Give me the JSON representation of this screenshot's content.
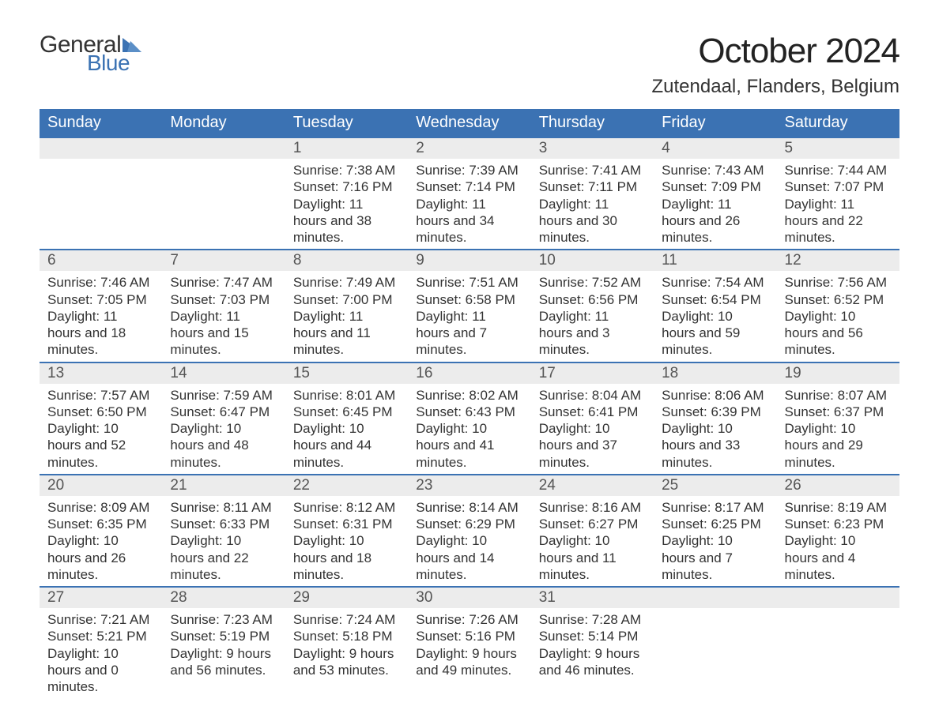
{
  "logo": {
    "text1": "General",
    "text2": "Blue"
  },
  "title": "October 2024",
  "location": "Zutendaal, Flanders, Belgium",
  "colors": {
    "header_bg": "#3b72b3",
    "header_text": "#ffffff",
    "daynum_bg": "#ececec",
    "daynum_border": "#3b72b3",
    "body_text": "#333333",
    "page_bg": "#ffffff",
    "logo_blue": "#3b72b3"
  },
  "weekdays": [
    "Sunday",
    "Monday",
    "Tuesday",
    "Wednesday",
    "Thursday",
    "Friday",
    "Saturday"
  ],
  "weeks": [
    [
      null,
      null,
      {
        "n": "1",
        "sr": "7:38 AM",
        "ss": "7:16 PM",
        "dl": "11 hours and 38 minutes."
      },
      {
        "n": "2",
        "sr": "7:39 AM",
        "ss": "7:14 PM",
        "dl": "11 hours and 34 minutes."
      },
      {
        "n": "3",
        "sr": "7:41 AM",
        "ss": "7:11 PM",
        "dl": "11 hours and 30 minutes."
      },
      {
        "n": "4",
        "sr": "7:43 AM",
        "ss": "7:09 PM",
        "dl": "11 hours and 26 minutes."
      },
      {
        "n": "5",
        "sr": "7:44 AM",
        "ss": "7:07 PM",
        "dl": "11 hours and 22 minutes."
      }
    ],
    [
      {
        "n": "6",
        "sr": "7:46 AM",
        "ss": "7:05 PM",
        "dl": "11 hours and 18 minutes."
      },
      {
        "n": "7",
        "sr": "7:47 AM",
        "ss": "7:03 PM",
        "dl": "11 hours and 15 minutes."
      },
      {
        "n": "8",
        "sr": "7:49 AM",
        "ss": "7:00 PM",
        "dl": "11 hours and 11 minutes."
      },
      {
        "n": "9",
        "sr": "7:51 AM",
        "ss": "6:58 PM",
        "dl": "11 hours and 7 minutes."
      },
      {
        "n": "10",
        "sr": "7:52 AM",
        "ss": "6:56 PM",
        "dl": "11 hours and 3 minutes."
      },
      {
        "n": "11",
        "sr": "7:54 AM",
        "ss": "6:54 PM",
        "dl": "10 hours and 59 minutes."
      },
      {
        "n": "12",
        "sr": "7:56 AM",
        "ss": "6:52 PM",
        "dl": "10 hours and 56 minutes."
      }
    ],
    [
      {
        "n": "13",
        "sr": "7:57 AM",
        "ss": "6:50 PM",
        "dl": "10 hours and 52 minutes."
      },
      {
        "n": "14",
        "sr": "7:59 AM",
        "ss": "6:47 PM",
        "dl": "10 hours and 48 minutes."
      },
      {
        "n": "15",
        "sr": "8:01 AM",
        "ss": "6:45 PM",
        "dl": "10 hours and 44 minutes."
      },
      {
        "n": "16",
        "sr": "8:02 AM",
        "ss": "6:43 PM",
        "dl": "10 hours and 41 minutes."
      },
      {
        "n": "17",
        "sr": "8:04 AM",
        "ss": "6:41 PM",
        "dl": "10 hours and 37 minutes."
      },
      {
        "n": "18",
        "sr": "8:06 AM",
        "ss": "6:39 PM",
        "dl": "10 hours and 33 minutes."
      },
      {
        "n": "19",
        "sr": "8:07 AM",
        "ss": "6:37 PM",
        "dl": "10 hours and 29 minutes."
      }
    ],
    [
      {
        "n": "20",
        "sr": "8:09 AM",
        "ss": "6:35 PM",
        "dl": "10 hours and 26 minutes."
      },
      {
        "n": "21",
        "sr": "8:11 AM",
        "ss": "6:33 PM",
        "dl": "10 hours and 22 minutes."
      },
      {
        "n": "22",
        "sr": "8:12 AM",
        "ss": "6:31 PM",
        "dl": "10 hours and 18 minutes."
      },
      {
        "n": "23",
        "sr": "8:14 AM",
        "ss": "6:29 PM",
        "dl": "10 hours and 14 minutes."
      },
      {
        "n": "24",
        "sr": "8:16 AM",
        "ss": "6:27 PM",
        "dl": "10 hours and 11 minutes."
      },
      {
        "n": "25",
        "sr": "8:17 AM",
        "ss": "6:25 PM",
        "dl": "10 hours and 7 minutes."
      },
      {
        "n": "26",
        "sr": "8:19 AM",
        "ss": "6:23 PM",
        "dl": "10 hours and 4 minutes."
      }
    ],
    [
      {
        "n": "27",
        "sr": "7:21 AM",
        "ss": "5:21 PM",
        "dl": "10 hours and 0 minutes."
      },
      {
        "n": "28",
        "sr": "7:23 AM",
        "ss": "5:19 PM",
        "dl": "9 hours and 56 minutes."
      },
      {
        "n": "29",
        "sr": "7:24 AM",
        "ss": "5:18 PM",
        "dl": "9 hours and 53 minutes."
      },
      {
        "n": "30",
        "sr": "7:26 AM",
        "ss": "5:16 PM",
        "dl": "9 hours and 49 minutes."
      },
      {
        "n": "31",
        "sr": "7:28 AM",
        "ss": "5:14 PM",
        "dl": "9 hours and 46 minutes."
      },
      null,
      null
    ]
  ],
  "labels": {
    "sunrise": "Sunrise:",
    "sunset": "Sunset:",
    "daylight": "Daylight:"
  }
}
